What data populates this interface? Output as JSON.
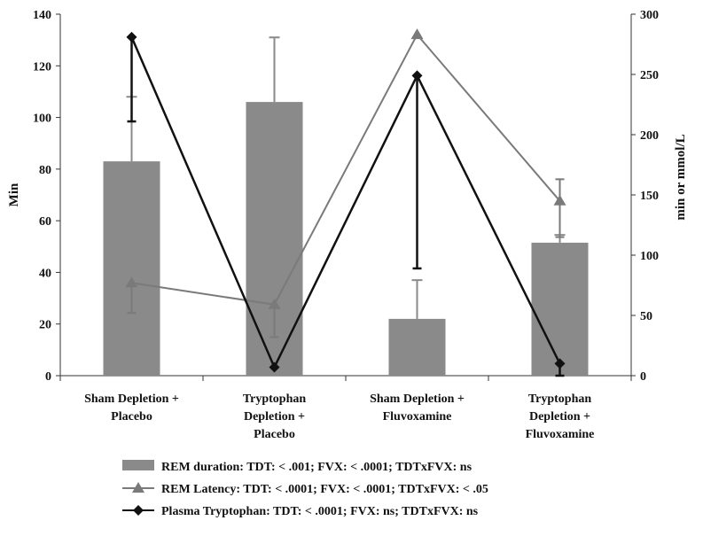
{
  "chart_data": {
    "type": "bar",
    "categories": [
      [
        "Sham Depletion +",
        "Placebo"
      ],
      [
        "Tryptophan",
        "Depletion +",
        "Placebo"
      ],
      [
        "Sham Depletion +",
        "Fluvoxamine"
      ],
      [
        "Tryptophan",
        "Depletion +",
        "Fluvoxamine"
      ]
    ],
    "ylabel": "Min",
    "y2label": "min or mmol/L",
    "ylim": [
      0,
      140
    ],
    "y2lim": [
      0,
      300
    ],
    "yticks": [
      0,
      20,
      40,
      60,
      80,
      100,
      120,
      140
    ],
    "y2ticks": [
      0,
      50,
      100,
      150,
      200,
      250,
      300
    ],
    "grid": false,
    "legend_position": "bottom",
    "series": [
      {
        "name": "REM duration: TDT: < .001; FVX: < .0001; TDTxFVX: ns",
        "kind": "bar",
        "axis": "left",
        "values": [
          83,
          106,
          22,
          51.5
        ],
        "err_up": [
          25,
          25,
          15,
          3
        ],
        "color": "#8a8a8a"
      },
      {
        "name": "REM Latency: TDT: < .0001; FVX: < .0001; TDTxFVX: < .05",
        "kind": "line",
        "marker": "triangle",
        "axis": "right",
        "values": [
          77,
          59,
          283,
          145
        ],
        "err_up": [
          0,
          0,
          0,
          18
        ],
        "err_down": [
          25,
          27,
          0,
          30
        ],
        "color": "#7a7a7a"
      },
      {
        "name": "Plasma Tryptophan: TDT: < .0001; FVX: ns; TDTxFVX: ns",
        "kind": "line",
        "marker": "diamond",
        "axis": "right",
        "values": [
          281,
          7,
          249,
          10
        ],
        "err_up": [
          0,
          0,
          0,
          0
        ],
        "err_down": [
          70,
          0,
          160,
          10
        ],
        "color": "#111111"
      }
    ]
  }
}
